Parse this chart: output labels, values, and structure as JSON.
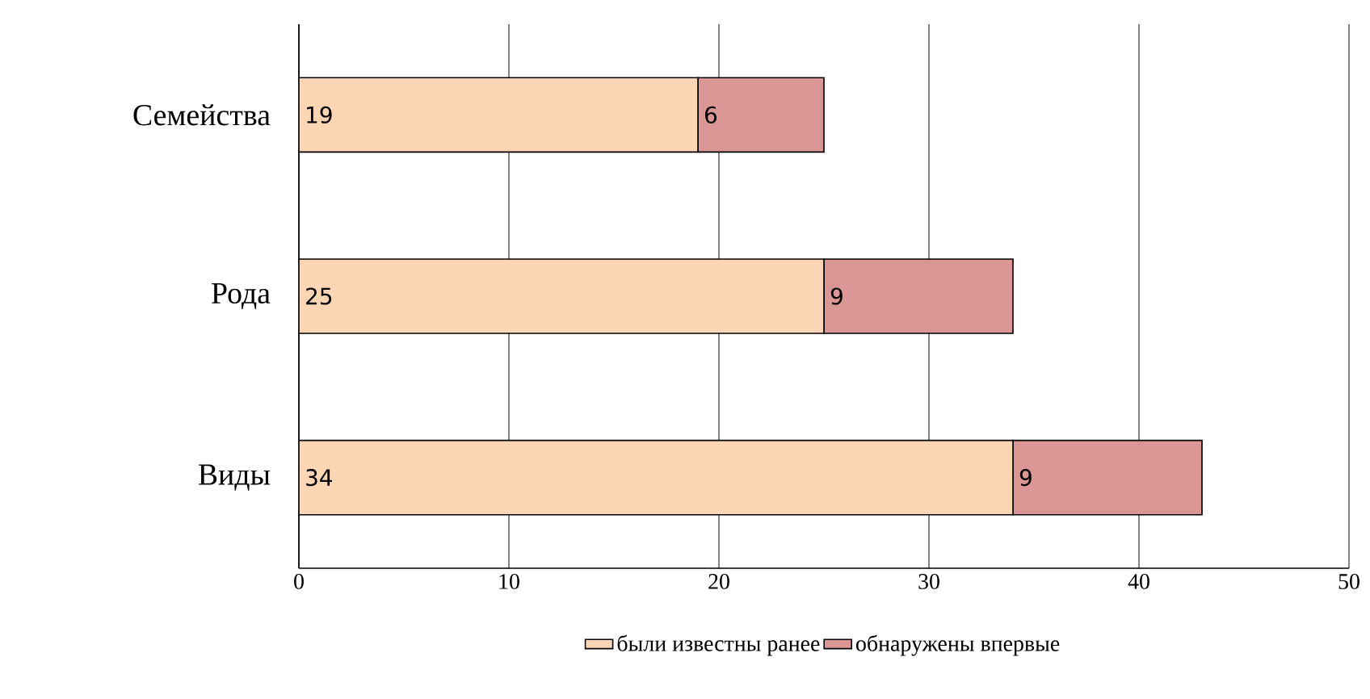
{
  "chart_data": {
    "type": "bar",
    "orientation": "horizontal",
    "stacked": true,
    "categories": [
      "Семейства",
      "Рода",
      "Виды"
    ],
    "series": [
      {
        "name": "были известны ранее",
        "color": "#fcd5b5",
        "values": [
          19,
          25,
          34
        ]
      },
      {
        "name": "обнаружены впервые",
        "color": "#d99694",
        "values": [
          6,
          9,
          9
        ]
      }
    ],
    "xlim": [
      0,
      50
    ],
    "xticks": [
      0,
      10,
      20,
      30,
      40,
      50
    ],
    "grid": "x",
    "legend": "bottom",
    "data_labels": true
  }
}
